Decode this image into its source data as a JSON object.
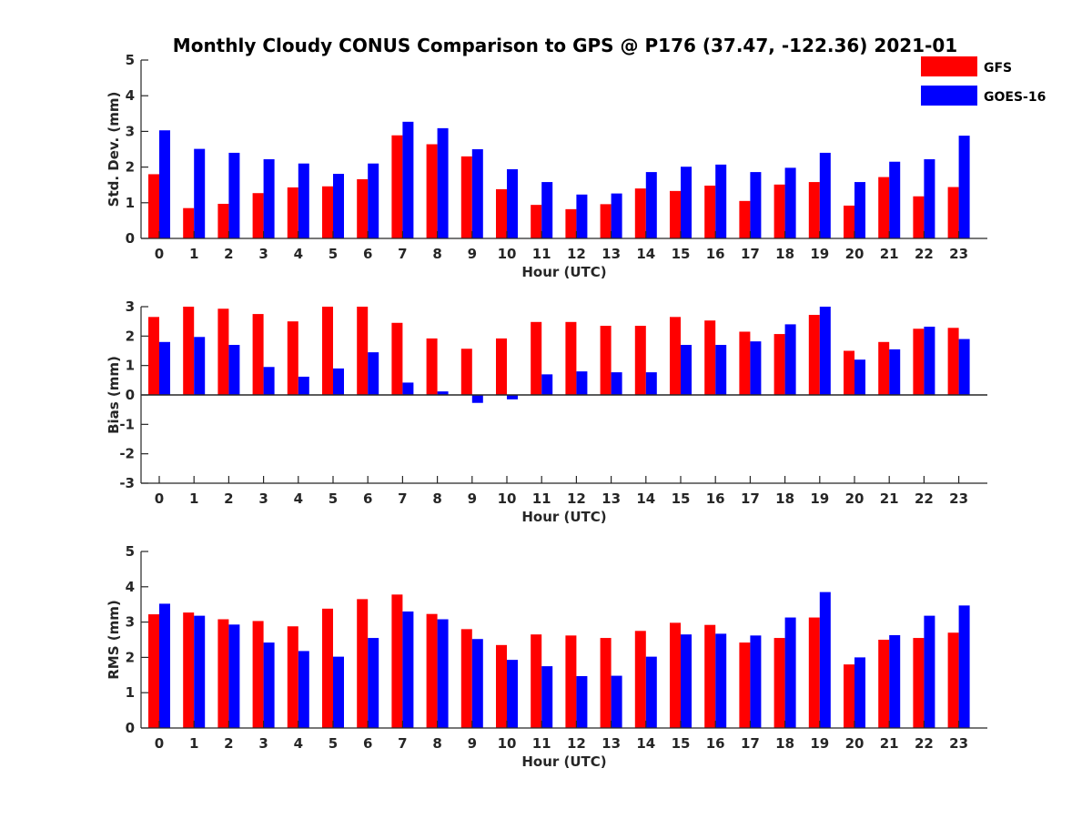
{
  "colors": {
    "gfs": "#ff0000",
    "goes": "#0000ff",
    "axis": "#262626"
  },
  "chart_data": [
    {
      "type": "bar",
      "title": "Monthly Cloudy CONUS Comparison to GPS @ P176 (37.47, -122.36) 2021-01",
      "xlabel": "Hour (UTC)",
      "ylabel": "Std. Dev. (mm)",
      "ylim": [
        0,
        5
      ],
      "yticks": [
        0,
        1,
        2,
        3,
        4,
        5
      ],
      "categories": [
        "0",
        "1",
        "2",
        "3",
        "4",
        "5",
        "6",
        "7",
        "8",
        "9",
        "10",
        "11",
        "12",
        "13",
        "14",
        "15",
        "16",
        "17",
        "18",
        "19",
        "20",
        "21",
        "22",
        "23"
      ],
      "series": [
        {
          "name": "GFS",
          "values": [
            1.8,
            0.85,
            0.97,
            1.27,
            1.43,
            1.46,
            1.66,
            2.89,
            2.64,
            2.3,
            1.38,
            0.94,
            0.82,
            0.96,
            1.4,
            1.33,
            1.48,
            1.05,
            1.51,
            1.58,
            0.92,
            1.72,
            1.18,
            1.44
          ]
        },
        {
          "name": "GOES-16",
          "values": [
            3.03,
            2.51,
            2.4,
            2.22,
            2.1,
            1.81,
            2.1,
            3.27,
            3.09,
            2.5,
            1.94,
            1.58,
            1.23,
            1.26,
            1.86,
            2.01,
            2.07,
            1.86,
            1.98,
            2.4,
            1.58,
            2.15,
            2.22,
            2.88
          ]
        }
      ],
      "legend": {
        "placement": "top-right",
        "entries": [
          "GFS",
          "GOES-16"
        ]
      }
    },
    {
      "type": "bar",
      "xlabel": "Hour (UTC)",
      "ylabel": "Bias (mm)",
      "ylim": [
        -3,
        3
      ],
      "yticks": [
        -3,
        -2,
        -1,
        0,
        1,
        2,
        3
      ],
      "categories": [
        "0",
        "1",
        "2",
        "3",
        "4",
        "5",
        "6",
        "7",
        "8",
        "9",
        "10",
        "11",
        "12",
        "13",
        "14",
        "15",
        "16",
        "17",
        "18",
        "19",
        "20",
        "21",
        "22",
        "23"
      ],
      "series": [
        {
          "name": "GFS",
          "values": [
            2.65,
            3.0,
            2.93,
            2.75,
            2.5,
            3.0,
            3.0,
            2.45,
            1.92,
            1.57,
            1.92,
            2.48,
            2.48,
            2.35,
            2.35,
            2.65,
            2.53,
            2.15,
            2.07,
            2.72,
            1.5,
            1.8,
            2.25,
            2.28
          ]
        },
        {
          "name": "GOES-16",
          "values": [
            1.8,
            1.97,
            1.7,
            0.95,
            0.62,
            0.9,
            1.45,
            0.42,
            0.12,
            -0.27,
            -0.15,
            0.7,
            0.8,
            0.77,
            0.77,
            1.7,
            1.7,
            1.82,
            2.4,
            3.0,
            1.2,
            1.55,
            2.32,
            1.9
          ]
        }
      ]
    },
    {
      "type": "bar",
      "xlabel": "Hour (UTC)",
      "ylabel": "RMS (mm)",
      "ylim": [
        0,
        5
      ],
      "yticks": [
        0,
        1,
        2,
        3,
        4,
        5
      ],
      "categories": [
        "0",
        "1",
        "2",
        "3",
        "4",
        "5",
        "6",
        "7",
        "8",
        "9",
        "10",
        "11",
        "12",
        "13",
        "14",
        "15",
        "16",
        "17",
        "18",
        "19",
        "20",
        "21",
        "22",
        "23"
      ],
      "series": [
        {
          "name": "GFS",
          "values": [
            3.22,
            3.27,
            3.08,
            3.03,
            2.88,
            3.38,
            3.65,
            3.78,
            3.23,
            2.8,
            2.35,
            2.65,
            2.62,
            2.55,
            2.75,
            2.98,
            2.92,
            2.42,
            2.55,
            3.13,
            1.8,
            2.5,
            2.55,
            2.7
          ]
        },
        {
          "name": "GOES-16",
          "values": [
            3.52,
            3.18,
            2.93,
            2.42,
            2.18,
            2.02,
            2.55,
            3.3,
            3.08,
            2.52,
            1.93,
            1.75,
            1.47,
            1.48,
            2.02,
            2.65,
            2.67,
            2.62,
            3.13,
            3.85,
            2.0,
            2.63,
            3.18,
            3.47
          ]
        }
      ]
    }
  ]
}
